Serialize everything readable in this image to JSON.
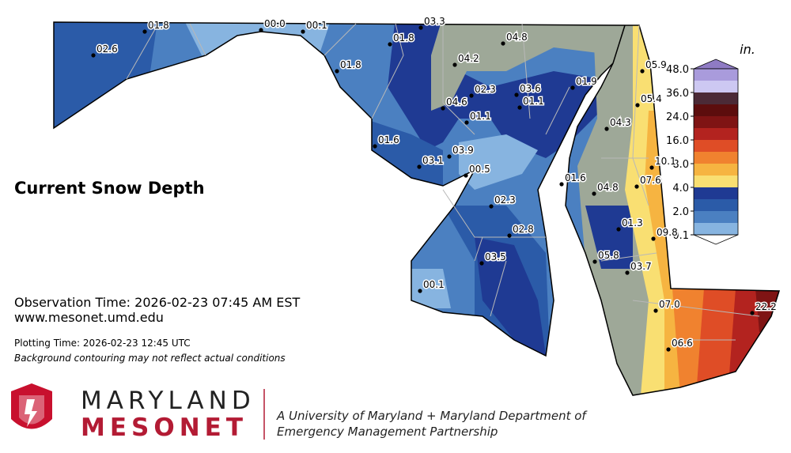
{
  "title": "Current Snow Depth",
  "observation_time": "Observation Time: 2026-02-23 07:45 AM EST",
  "url": "www.mesonet.umd.edu",
  "plotting_time": "Plotting Time: 2026-02-23 12:45 UTC",
  "note": "Background contouring may not reflect actual conditions",
  "logo": {
    "line1": "MARYLAND",
    "line2": "MESONET",
    "tagline": [
      "A University of Maryland + Maryland Department of",
      "Emergency Management Partnership"
    ]
  },
  "legend": {
    "unit": "in.",
    "over_color": "#8f7bc4",
    "under_color": "#ffffff",
    "colors": [
      "#a99bdc",
      "#cdc8f2",
      "#4b2a36",
      "#5c0d0d",
      "#7f1414",
      "#b3231f",
      "#df4d26",
      "#f0822f",
      "#f6b441",
      "#f9df72",
      "#1f3a93",
      "#2b5ba8",
      "#4b80c1",
      "#87b4e0"
    ],
    "ticks": [
      {
        "value": 48,
        "label": "48.0"
      },
      {
        "value": 36,
        "label": "36.0"
      },
      {
        "value": 24,
        "label": "24.0"
      },
      {
        "value": 16,
        "label": "16.0"
      },
      {
        "value": 8,
        "label": "8.0"
      },
      {
        "value": 4,
        "label": "4.0"
      },
      {
        "value": 2,
        "label": "2.0"
      },
      0.1
    ]
  },
  "stations": [
    {
      "value": 2.6,
      "label": "02.6"
    },
    {
      "value": 1.8,
      "label": "01.8"
    },
    {
      "value": 0,
      "label": "00.0"
    },
    {
      "value": 0.1,
      "label": "00.1"
    },
    {
      "value": 3.3,
      "label": "03.3"
    },
    {
      "value": 1.8,
      "label": "01.8"
    },
    {
      "value": 4.8,
      "label": "04.8"
    },
    {
      "value": 4.2,
      "label": "04.2"
    },
    {
      "value": 1.8,
      "label": "01.8"
    },
    {
      "value": 5.9,
      "label": "05.9"
    },
    {
      "value": 2.3,
      "label": "02.3"
    },
    {
      "value": 3.6,
      "label": "03.6"
    },
    {
      "value": 1.9,
      "label": "01.9"
    },
    {
      "value": 4.6,
      "label": "04.6"
    },
    {
      "value": 1.1,
      "label": "01.1"
    },
    {
      "value": 5.4,
      "label": "05.4"
    },
    {
      "value": 1.1,
      "label": "01.1"
    },
    {
      "value": 4.3,
      "label": "04.3"
    },
    {
      "value": 1.6,
      "label": "01.6"
    },
    {
      "value": 3.9,
      "label": "03.9"
    },
    {
      "value": 3.1,
      "label": "03.1"
    },
    {
      "value": 10.1,
      "label": "10.1"
    },
    {
      "value": 0.5,
      "label": "00.5"
    },
    {
      "value": 1.6,
      "label": "01.6"
    },
    {
      "value": 4.8,
      "label": "04.8"
    },
    {
      "value": 7.6,
      "label": "07.6"
    },
    {
      "value": 2.3,
      "label": "02.3"
    },
    {
      "value": 1.3,
      "label": "01.3"
    },
    {
      "value": 2.8,
      "label": "02.8"
    },
    {
      "value": 9.8,
      "label": "09.8"
    },
    {
      "value": 3.5,
      "label": "03.5"
    },
    {
      "value": 5.8,
      "label": "05.8"
    },
    {
      "value": 3.7,
      "label": "03.7"
    },
    {
      "value": 0.1,
      "label": "00.1"
    },
    {
      "value": 7,
      "label": "07.0"
    },
    {
      "value": 22.2,
      "label": "22.2"
    },
    {
      "value": 6.6,
      "label": "06.6"
    }
  ]
}
